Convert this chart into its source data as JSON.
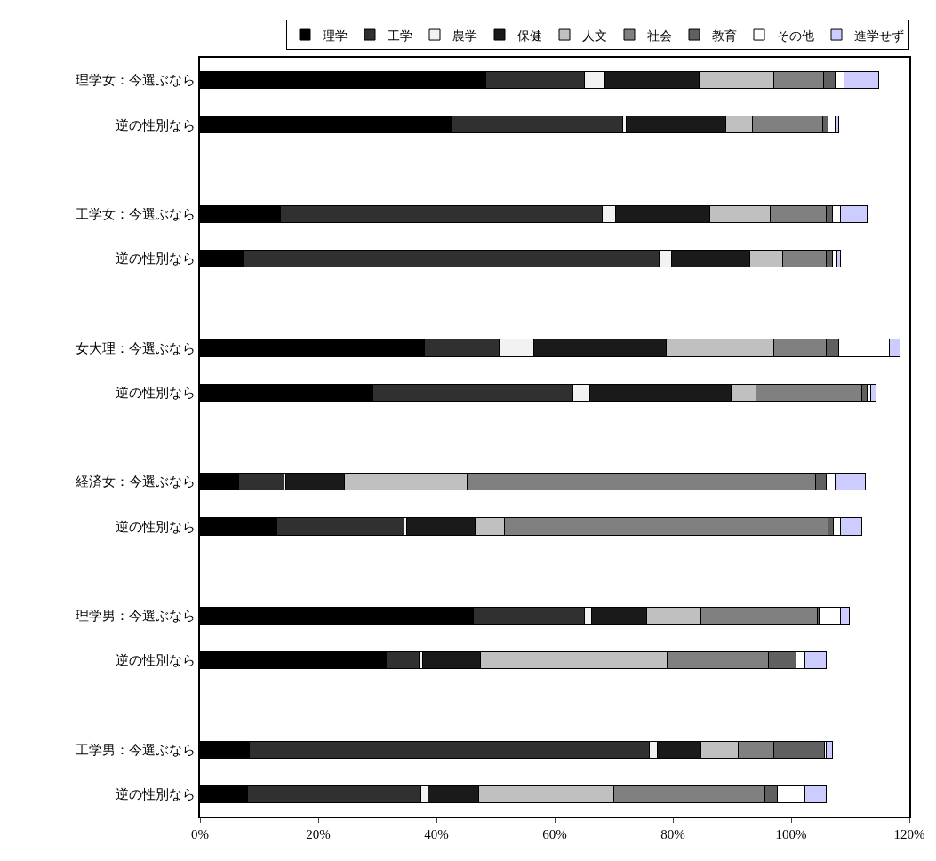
{
  "chart_data": {
    "type": "bar",
    "orientation": "horizontal",
    "stacked": true,
    "categories": [
      "理学女：今選ぶなら",
      "逆の性別なら",
      "工学女：今選ぶなら",
      "逆の性別なら",
      "女大理：今選ぶなら",
      "逆の性別なら",
      "経済女：今選ぶなら",
      "逆の性別なら",
      "理学男：今選ぶなら",
      "逆の性別なら",
      "工学男：今選ぶなら",
      "逆の性別なら"
    ],
    "series": [
      {
        "name": "理学",
        "color": "#000000",
        "values": [
          48.3,
          42.5,
          13.6,
          7.5,
          38,
          29.2,
          6.6,
          13,
          46.2,
          31.5,
          8.4,
          8.1
        ]
      },
      {
        "name": "工学",
        "color": "#303030",
        "values": [
          16.7,
          29,
          54.4,
          70.1,
          12.6,
          33.9,
          7.6,
          21.5,
          18.8,
          5.5,
          67.6,
          29.2
        ]
      },
      {
        "name": "農学",
        "color": "#f2f2f2",
        "values": [
          3.5,
          0.6,
          2.3,
          2.1,
          5.9,
          2.9,
          0.3,
          0.5,
          1.3,
          0.6,
          1.3,
          1.2
        ]
      },
      {
        "name": "保健",
        "color": "#1a1a1a",
        "values": [
          16,
          16.8,
          16,
          13.3,
          22.3,
          23.8,
          10,
          11.5,
          9.3,
          9.8,
          7.5,
          8.6
        ]
      },
      {
        "name": "人文",
        "color": "#c0c0c0",
        "values": [
          12.5,
          4.5,
          10.2,
          5.5,
          18.2,
          4.2,
          20.7,
          5,
          9.2,
          31.6,
          6.2,
          22.9
        ]
      },
      {
        "name": "社会",
        "color": "#808080",
        "values": [
          8.5,
          12,
          9.5,
          7.5,
          9,
          18,
          59,
          54.8,
          19.7,
          17.2,
          6,
          25.5
        ]
      },
      {
        "name": "教育",
        "color": "#606060",
        "values": [
          2,
          0.9,
          1,
          1,
          2,
          0.8,
          1.8,
          0.9,
          0.3,
          4.6,
          8.6,
          2.2
        ]
      },
      {
        "name": "その他",
        "color": "#ffffff",
        "values": [
          1.5,
          1.2,
          1.4,
          0.7,
          8.6,
          0.7,
          1.5,
          1.1,
          3.5,
          1.5,
          0.4,
          4.6
        ]
      },
      {
        "name": "進学せず",
        "color": "#ccccff",
        "values": [
          5.8,
          0.6,
          4.4,
          0.6,
          1.8,
          0.8,
          5,
          3.7,
          1.5,
          3.7,
          1,
          3.7
        ]
      }
    ],
    "xlim": [
      0,
      120
    ],
    "xticks": [
      {
        "value": 0,
        "label": "0%"
      },
      {
        "value": 20,
        "label": "20%"
      },
      {
        "value": 40,
        "label": "40%"
      },
      {
        "value": 60,
        "label": "60%"
      },
      {
        "value": 80,
        "label": "80%"
      },
      {
        "value": 100,
        "label": "100%"
      },
      {
        "value": 120,
        "label": "120%"
      }
    ],
    "legend": "top right"
  }
}
